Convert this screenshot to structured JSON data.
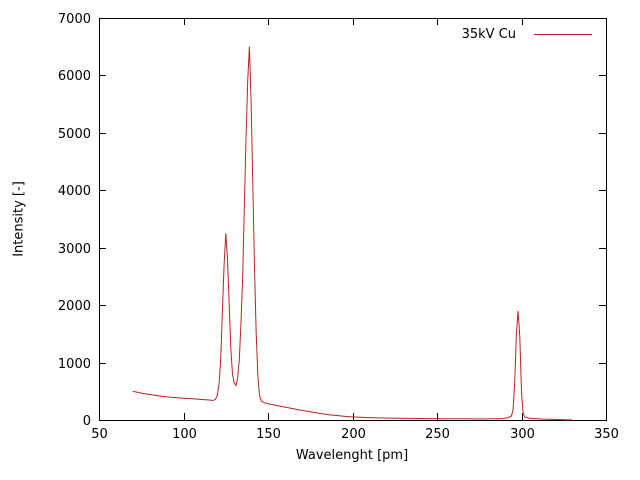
{
  "chart_data": {
    "type": "line",
    "title": "",
    "xlabel": "Wavelenght [pm]",
    "ylabel": "Intensity [-]",
    "xlim": [
      50,
      350
    ],
    "ylim": [
      0,
      7000
    ],
    "xticks": [
      50,
      100,
      150,
      200,
      250,
      300,
      350
    ],
    "yticks": [
      0,
      1000,
      2000,
      3000,
      4000,
      5000,
      6000,
      7000
    ],
    "grid": false,
    "legend_position": "top-right-inside",
    "background_color": "#ffffff",
    "border_color": "#000000",
    "series": [
      {
        "name": "35kV Cu",
        "color": "#bb2222",
        "points": [
          [
            70,
            500
          ],
          [
            73,
            480
          ],
          [
            76,
            462
          ],
          [
            79,
            448
          ],
          [
            82,
            435
          ],
          [
            85,
            422
          ],
          [
            88,
            410
          ],
          [
            91,
            400
          ],
          [
            94,
            392
          ],
          [
            97,
            385
          ],
          [
            100,
            380
          ],
          [
            103,
            375
          ],
          [
            106,
            370
          ],
          [
            109,
            362
          ],
          [
            112,
            355
          ],
          [
            115,
            348
          ],
          [
            117,
            342
          ],
          [
            118,
            345
          ],
          [
            119,
            365
          ],
          [
            120,
            430
          ],
          [
            121,
            620
          ],
          [
            122,
            1050
          ],
          [
            123,
            1900
          ],
          [
            124,
            2700
          ],
          [
            125,
            3250
          ],
          [
            126,
            2850
          ],
          [
            127,
            2050
          ],
          [
            128,
            1250
          ],
          [
            129,
            800
          ],
          [
            130,
            650
          ],
          [
            131,
            600
          ],
          [
            132,
            720
          ],
          [
            133,
            1050
          ],
          [
            134,
            1700
          ],
          [
            135,
            2500
          ],
          [
            136,
            3700
          ],
          [
            137,
            4900
          ],
          [
            138,
            5900
          ],
          [
            139,
            6500
          ],
          [
            140,
            5550
          ],
          [
            141,
            4100
          ],
          [
            142,
            2650
          ],
          [
            143,
            1500
          ],
          [
            144,
            750
          ],
          [
            145,
            430
          ],
          [
            146,
            330
          ],
          [
            148,
            300
          ],
          [
            150,
            285
          ],
          [
            153,
            265
          ],
          [
            156,
            248
          ],
          [
            159,
            230
          ],
          [
            162,
            213
          ],
          [
            165,
            197
          ],
          [
            168,
            180
          ],
          [
            171,
            163
          ],
          [
            174,
            148
          ],
          [
            177,
            132
          ],
          [
            180,
            117
          ],
          [
            183,
            104
          ],
          [
            186,
            92
          ],
          [
            189,
            82
          ],
          [
            192,
            73
          ],
          [
            195,
            65
          ],
          [
            198,
            58
          ],
          [
            201,
            53
          ],
          [
            205,
            47
          ],
          [
            210,
            41
          ],
          [
            215,
            37
          ],
          [
            220,
            34
          ],
          [
            225,
            31
          ],
          [
            230,
            29
          ],
          [
            235,
            27
          ],
          [
            240,
            26
          ],
          [
            245,
            25
          ],
          [
            250,
            24
          ],
          [
            255,
            23
          ],
          [
            260,
            22
          ],
          [
            265,
            21
          ],
          [
            270,
            20
          ],
          [
            275,
            20
          ],
          [
            280,
            20
          ],
          [
            284,
            22
          ],
          [
            287,
            25
          ],
          [
            290,
            30
          ],
          [
            292,
            38
          ],
          [
            294,
            70
          ],
          [
            295,
            170
          ],
          [
            296,
            650
          ],
          [
            297,
            1500
          ],
          [
            298,
            1900
          ],
          [
            299,
            1450
          ],
          [
            300,
            480
          ],
          [
            301,
            110
          ],
          [
            302,
            48
          ],
          [
            304,
            34
          ],
          [
            306,
            28
          ],
          [
            308,
            24
          ],
          [
            311,
            20
          ],
          [
            314,
            16
          ],
          [
            317,
            13
          ],
          [
            320,
            10
          ],
          [
            323,
            7
          ],
          [
            326,
            4
          ],
          [
            330,
            2
          ]
        ]
      }
    ]
  }
}
